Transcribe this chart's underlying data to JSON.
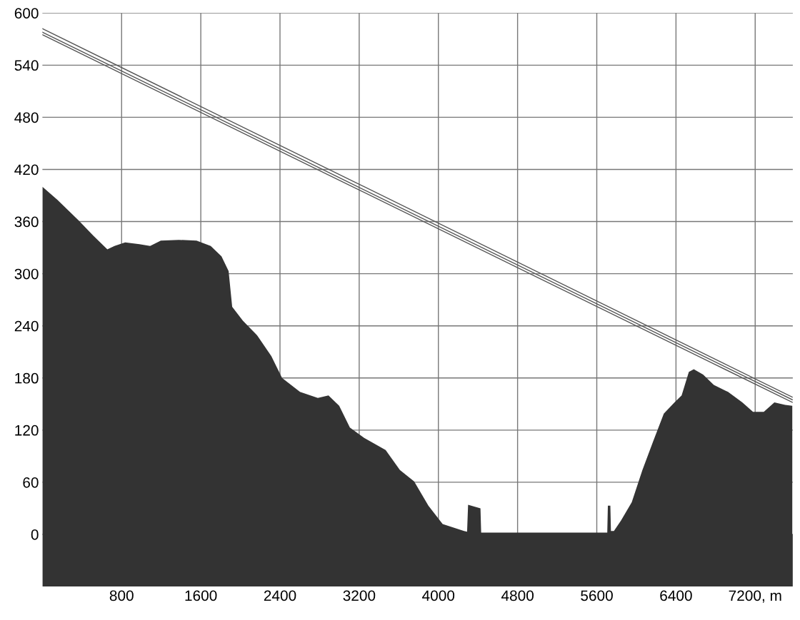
{
  "chart_data": {
    "type": "area",
    "xlim": [
      0,
      7580
    ],
    "ylim": [
      -60,
      600
    ],
    "xticks": [
      800,
      1600,
      2400,
      3200,
      4000,
      4800,
      5600,
      6400,
      {
        "value": 7200,
        "label": "7200, m"
      }
    ],
    "yticks": [
      0,
      60,
      120,
      180,
      240,
      300,
      360,
      420,
      480,
      540,
      600
    ],
    "grid": true,
    "bands": [
      {
        "axis": "y",
        "from": -60,
        "to": 0,
        "color": "#333333"
      }
    ],
    "series": [
      {
        "color": "#333333",
        "x": [
          0,
          151,
          368,
          512,
          656,
          728,
          836,
          980,
          1088,
          1196,
          1377,
          1557,
          1700,
          1809,
          1881,
          1917,
          2025,
          2169,
          2313,
          2421,
          2602,
          2782,
          2890,
          2998,
          3106,
          3250,
          3467,
          3611,
          3755,
          3899,
          4043,
          4259,
          4290,
          4300,
          4425,
          4432,
          5701,
          5706,
          5712,
          5737,
          5743,
          5773,
          5845,
          5953,
          6061,
          6169,
          6277,
          6385,
          6457,
          6530,
          6580,
          6674,
          6782,
          6926,
          7070,
          7178,
          7287,
          7394,
          7503,
          7575
        ],
        "values": [
          400,
          385,
          361,
          344,
          328,
          332,
          336,
          334,
          332,
          338,
          339,
          338,
          332,
          320,
          303,
          262,
          246,
          229,
          205,
          180,
          164,
          157,
          160,
          148,
          123,
          111,
          97,
          74,
          61,
          33,
          12,
          4,
          3,
          34,
          30,
          2,
          2,
          2,
          33,
          33,
          4,
          4,
          16,
          37,
          74,
          107,
          139,
          152,
          160,
          187,
          190,
          184,
          172,
          164,
          152,
          141,
          141,
          152,
          149,
          148
        ]
      },
      {
        "type": "line",
        "color": "#555555",
        "x": [
          0,
          7575
        ],
        "values": [
          582,
          158
        ]
      },
      {
        "type": "line",
        "color": "#555555",
        "x": [
          0,
          7575
        ],
        "values": [
          578,
          155
        ]
      },
      {
        "type": "line",
        "color": "#555555",
        "x": [
          0,
          7575
        ],
        "values": [
          575,
          152
        ]
      }
    ]
  }
}
